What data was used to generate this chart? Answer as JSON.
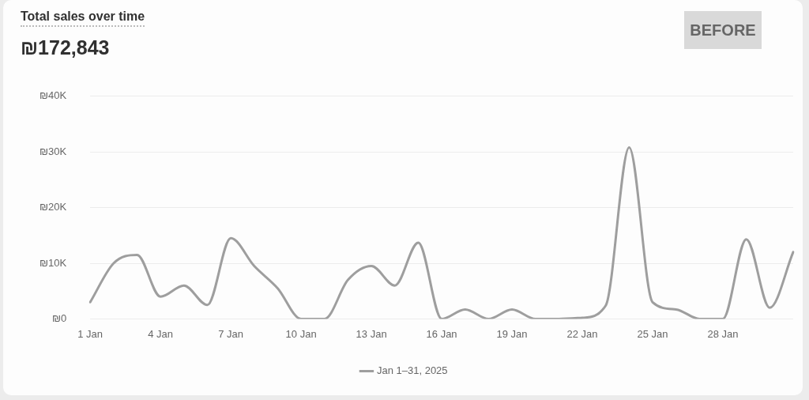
{
  "chart_data": {
    "type": "line",
    "title": "Total sales over time",
    "subtitle": "₪172,843",
    "annotations": [
      "BEFORE"
    ],
    "categories": [
      "1 Jan",
      null,
      null,
      "4 Jan",
      null,
      null,
      "7 Jan",
      null,
      null,
      "10 Jan",
      null,
      null,
      "13 Jan",
      null,
      null,
      "16 Jan",
      null,
      null,
      "19 Jan",
      null,
      null,
      "22 Jan",
      null,
      null,
      "25 Jan",
      null,
      null,
      "28 Jan",
      null,
      null,
      null
    ],
    "series": [
      {
        "name": "Jan 1–31, 2025",
        "color": "#9e9e9e",
        "values": [
          3000,
          10000,
          11500,
          4000,
          6000,
          2500,
          14500,
          9500,
          5500,
          0,
          0,
          7000,
          9500,
          6000,
          13700,
          0,
          1700,
          0,
          1700,
          0,
          0,
          200,
          2400,
          30800,
          3000,
          1700,
          0,
          0,
          14300,
          2000,
          12000
        ]
      }
    ],
    "ylim": [
      0,
      40000
    ],
    "yticks": [
      {
        "value": 0,
        "label": "₪0"
      },
      {
        "value": 10000,
        "label": "₪10K"
      },
      {
        "value": 20000,
        "label": "₪20K"
      },
      {
        "value": 30000,
        "label": "₪30K"
      },
      {
        "value": 40000,
        "label": "₪40K"
      }
    ],
    "grid": "y",
    "legend": "bottom",
    "marker": "none",
    "line_style": "solid"
  }
}
